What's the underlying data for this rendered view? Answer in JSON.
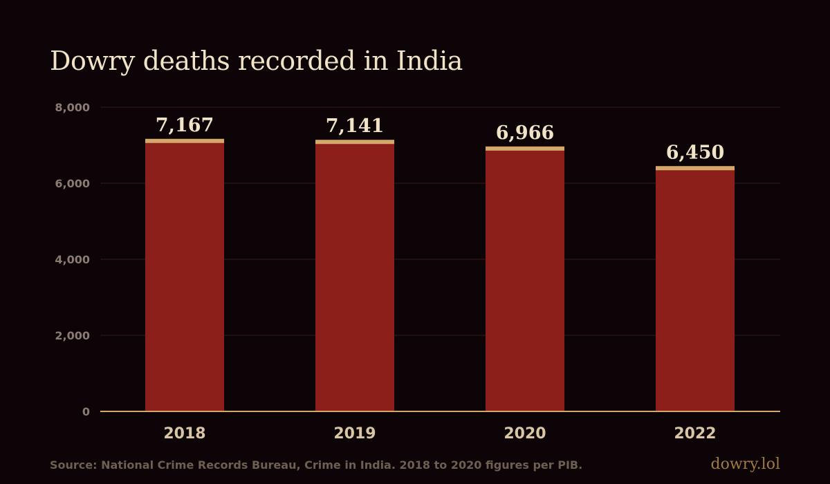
{
  "colors": {
    "background": "#0c0406",
    "bar": "#8c1f1a",
    "bar_cap": "#d4a86a",
    "gridline": "#3a1a1c",
    "baseline": "#d4a86a",
    "title": "#f0e3c6",
    "value_label": "#f0e3c6",
    "tick_label": "#8a7c72",
    "category_label": "#d9c6a5",
    "source": "#6e5f52",
    "brand": "#a07a43"
  },
  "chart_data": {
    "type": "bar",
    "title": "Dowry deaths recorded in India",
    "xlabel": "",
    "ylabel": "",
    "categories": [
      "2018",
      "2019",
      "2020",
      "2022"
    ],
    "values": [
      7167,
      7141,
      6966,
      6450
    ],
    "value_labels": [
      "7,167",
      "7,141",
      "6,966",
      "6,450"
    ],
    "ylim": [
      0,
      8000
    ],
    "yticks": [
      0,
      2000,
      4000,
      6000,
      8000
    ],
    "ytick_labels": [
      "0",
      "2,000",
      "4,000",
      "6,000",
      "8,000"
    ],
    "grid": true,
    "legend": "none"
  },
  "footer": {
    "source": "Source: National Crime Records Bureau, Crime in India. 2018 to 2020 figures per PIB.",
    "brand": "dowry.lol"
  }
}
